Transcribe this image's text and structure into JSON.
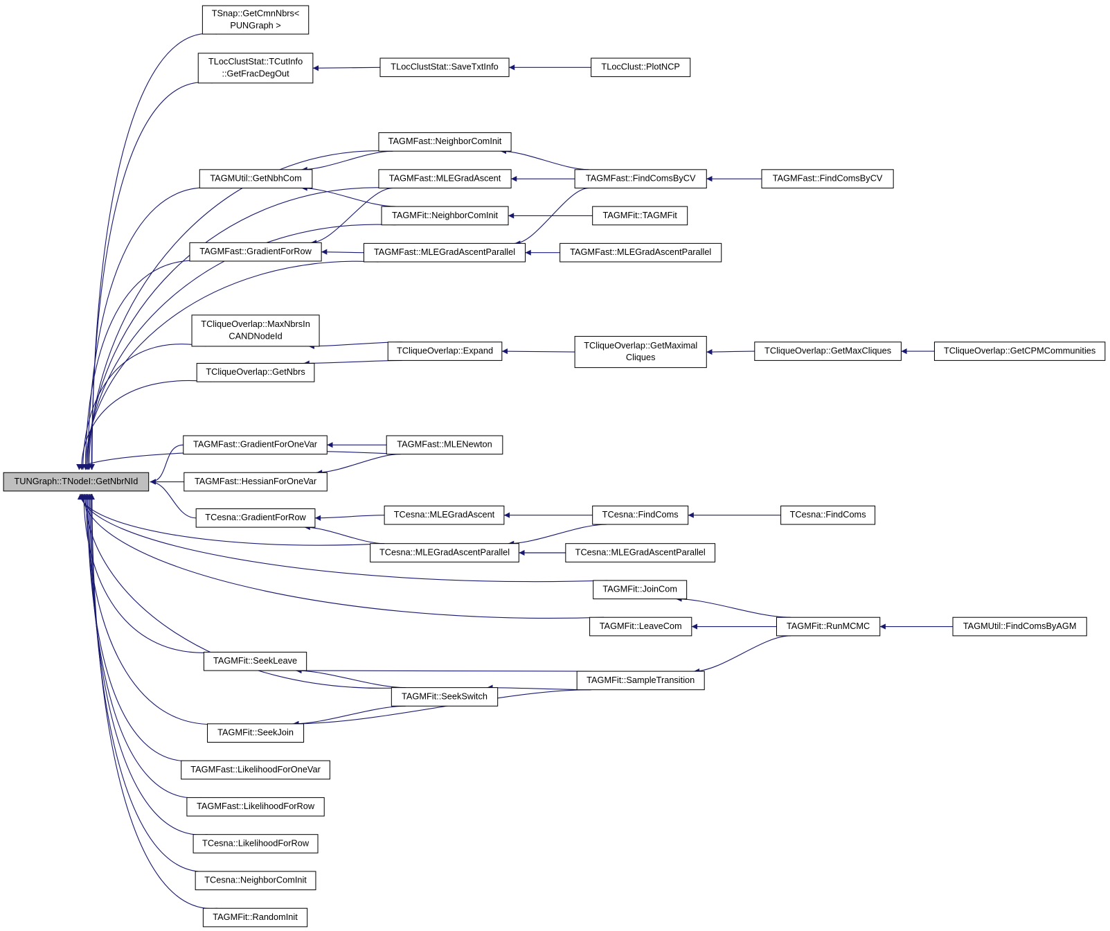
{
  "nodes": [
    {
      "lines": [
        "TUNGraph::TNodeI::GetNbrNId"
      ]
    },
    {
      "lines": [
        "TSnap::GetCmnNbrs<",
        "PUNGraph >"
      ]
    },
    {
      "lines": [
        "TLocClustStat::TCutInfo",
        "::GetFracDegOut"
      ]
    },
    {
      "lines": [
        "TLocClustStat::SaveTxtInfo"
      ]
    },
    {
      "lines": [
        "TLocClust::PlotNCP"
      ]
    },
    {
      "lines": [
        "TAGMFast::NeighborComInit"
      ]
    },
    {
      "lines": [
        "TAGMUtil::GetNbhCom"
      ]
    },
    {
      "lines": [
        "TAGMFast::MLEGradAscent"
      ]
    },
    {
      "lines": [
        "TAGMFast::FindComsByCV"
      ]
    },
    {
      "lines": [
        "TAGMFast::FindComsByCV"
      ]
    },
    {
      "lines": [
        "TAGMFit::NeighborComInit"
      ]
    },
    {
      "lines": [
        "TAGMFit::TAGMFit"
      ]
    },
    {
      "lines": [
        "TAGMFast::GradientForRow"
      ]
    },
    {
      "lines": [
        "TAGMFast::MLEGradAscentParallel"
      ]
    },
    {
      "lines": [
        "TAGMFast::MLEGradAscentParallel"
      ]
    },
    {
      "lines": [
        "TCliqueOverlap::MaxNbrsIn",
        "CANDNodeId"
      ]
    },
    {
      "lines": [
        "TCliqueOverlap::Expand"
      ]
    },
    {
      "lines": [
        "TCliqueOverlap::GetMaximal",
        "Cliques"
      ]
    },
    {
      "lines": [
        "TCliqueOverlap::GetMaxCliques"
      ]
    },
    {
      "lines": [
        "TCliqueOverlap::GetCPMCommunities"
      ]
    },
    {
      "lines": [
        "TCliqueOverlap::GetNbrs"
      ]
    },
    {
      "lines": [
        "TAGMFast::GradientForOneVar"
      ]
    },
    {
      "lines": [
        "TAGMFast::MLENewton"
      ]
    },
    {
      "lines": [
        "TAGMFast::HessianForOneVar"
      ]
    },
    {
      "lines": [
        "TCesna::GradientForRow"
      ]
    },
    {
      "lines": [
        "TCesna::MLEGradAscent"
      ]
    },
    {
      "lines": [
        "TCesna::FindComs"
      ]
    },
    {
      "lines": [
        "TCesna::FindComs"
      ]
    },
    {
      "lines": [
        "TCesna::MLEGradAscentParallel"
      ]
    },
    {
      "lines": [
        "TCesna::MLEGradAscentParallel"
      ]
    },
    {
      "lines": [
        "TAGMFit::JoinCom"
      ]
    },
    {
      "lines": [
        "TAGMFit::LeaveCom"
      ]
    },
    {
      "lines": [
        "TAGMFit::RunMCMC"
      ]
    },
    {
      "lines": [
        "TAGMUtil::FindComsByAGM"
      ]
    },
    {
      "lines": [
        "TAGMFit::SeekLeave"
      ]
    },
    {
      "lines": [
        "TAGMFit::SampleTransition"
      ]
    },
    {
      "lines": [
        "TAGMFit::SeekSwitch"
      ]
    },
    {
      "lines": [
        "TAGMFit::SeekJoin"
      ]
    },
    {
      "lines": [
        "TAGMFast::LikelihoodForOneVar"
      ]
    },
    {
      "lines": [
        "TAGMFast::LikelihoodForRow"
      ]
    },
    {
      "lines": [
        "TCesna::LikelihoodForRow"
      ]
    },
    {
      "lines": [
        "TCesna::NeighborComInit"
      ]
    },
    {
      "lines": [
        "TAGMFit::RandomInit"
      ]
    }
  ]
}
